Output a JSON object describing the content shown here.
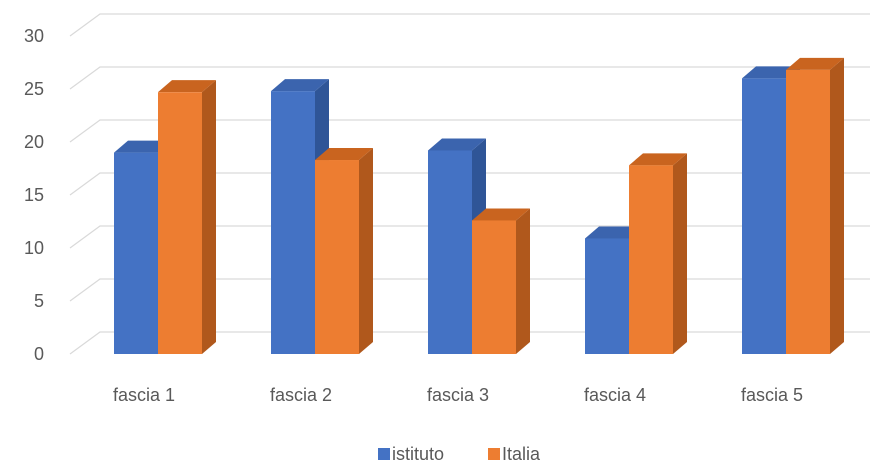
{
  "chart_data": {
    "type": "bar",
    "categories": [
      "fascia 1",
      "fascia 2",
      "fascia 3",
      "fascia 4",
      "fascia 5"
    ],
    "series": [
      {
        "name": "istituto",
        "values": [
          19,
          24.8,
          19.2,
          10.9,
          26
        ],
        "color": "#4472C4",
        "side_color": "#2F5597",
        "top_color": "#3B64AE"
      },
      {
        "name": "Italia",
        "values": [
          24.7,
          18.3,
          12.6,
          17.8,
          26.8
        ],
        "color": "#ED7D31",
        "side_color": "#B0581C",
        "top_color": "#C9641F"
      }
    ],
    "yticks": [
      0,
      5,
      10,
      15,
      20,
      25,
      30
    ],
    "ylim": [
      0,
      30
    ],
    "grid": true,
    "legend_position": "bottom",
    "style": "3d-clustered-column"
  }
}
